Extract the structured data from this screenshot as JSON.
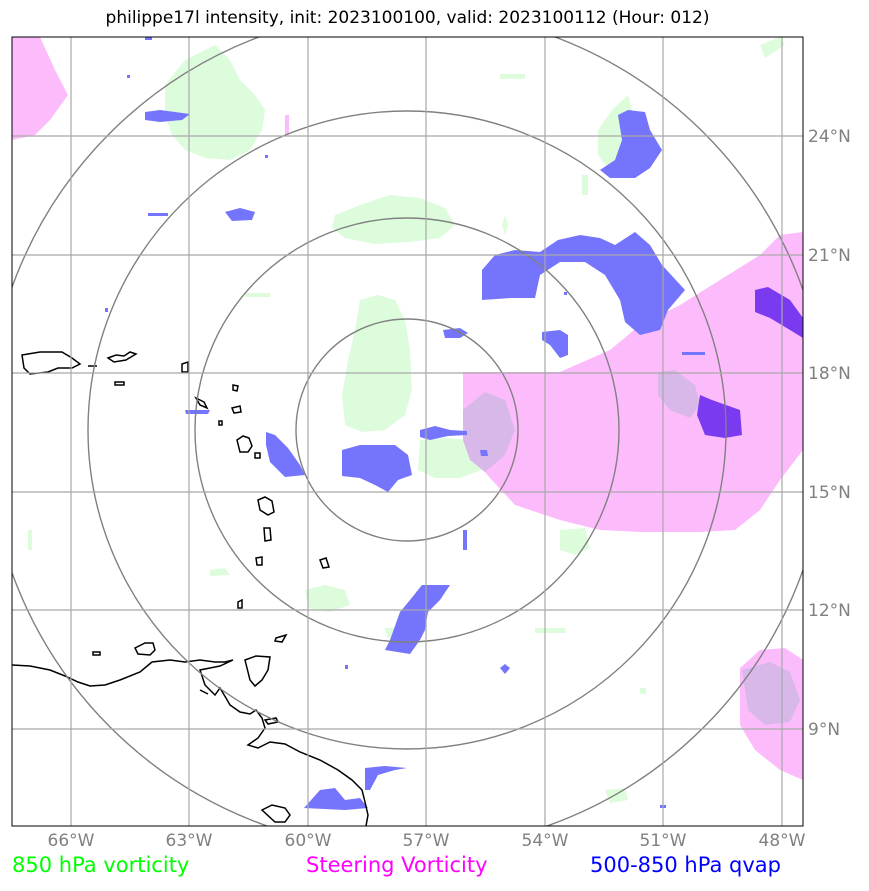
{
  "title": "philippe17l intensity, init: 2023100100, valid: 2023100112 (Hour: 012)",
  "x_ticks": [
    "66°W",
    "63°W",
    "60°W",
    "57°W",
    "54°W",
    "51°W",
    "48°W"
  ],
  "y_ticks": [
    "24°N",
    "21°N",
    "18°N",
    "15°N",
    "12°N",
    "9°N"
  ],
  "legend": [
    {
      "label": "850 hPa vorticity",
      "color": "#00ff00"
    },
    {
      "label": "Steering Vorticity",
      "color": "#ff00ff"
    },
    {
      "label": "500-850 hPa qvap",
      "color": "#0000ff"
    }
  ],
  "colors": {
    "vorticity_850": "#dcfcdc",
    "steering_vorticity": "#fcb8fc",
    "qvap": "#7474fc",
    "qvap_dark": "#7a3af0",
    "grid": "#808080",
    "coastline": "#000000"
  }
}
